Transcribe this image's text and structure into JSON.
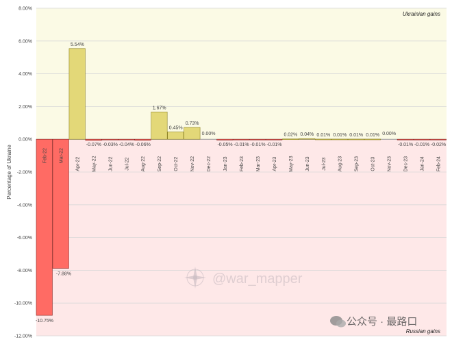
{
  "chart_data": {
    "type": "bar",
    "ylabel": "Percentage of Ukraine",
    "ylim": [
      -12,
      8
    ],
    "yticks": [
      "-12.00%",
      "-10.00%",
      "-8.00%",
      "-6.00%",
      "-4.00%",
      "-2.00%",
      "0.00%",
      "2.00%",
      "4.00%",
      "6.00%",
      "8.00%"
    ],
    "categories": [
      "Feb-22",
      "Mar-22",
      "Apr-22",
      "May-22",
      "Jun-22",
      "Jul-22",
      "Aug-22",
      "Sep-22",
      "Oct-22",
      "Nov-22",
      "Dec-22",
      "Jan-23",
      "Feb-23",
      "Mar-23",
      "Apr-23",
      "May-23",
      "Jun-23",
      "Jul-23",
      "Aug-23",
      "Sep-23",
      "Oct-23",
      "Nov-23",
      "Dec-23",
      "Jan-24",
      "Feb-24"
    ],
    "values": [
      -10.75,
      -7.88,
      5.54,
      -0.07,
      -0.03,
      -0.04,
      -0.06,
      1.67,
      0.45,
      0.73,
      0.0,
      -0.05,
      -0.01,
      -0.01,
      -0.01,
      0.02,
      0.04,
      0.01,
      0.01,
      0.01,
      0.01,
      0.0,
      -0.01,
      -0.01,
      -0.02
    ],
    "labels": [
      "-10.75%",
      "-7.88%",
      "5.54%",
      "-0.07%",
      "-0.03%",
      "-0.04%",
      "-0.06%",
      "1.67%",
      "0.45%",
      "0.73%",
      "0.00%",
      "-0.05%",
      "-0.01%",
      "-0.01%",
      "-0.01%",
      "0.02%",
      "0.04%",
      "0.01%",
      "0.01%",
      "0.01%",
      "0.01%",
      "0.00%",
      "-0.01%",
      "-0.01%",
      "-0.02%"
    ],
    "regions": {
      "positive": "Ukrainian gains",
      "negative": "Russian gains"
    },
    "grid": true
  },
  "colors": {
    "positive_bg": "#fbfae5",
    "negative_bg": "#fee8e8",
    "positive_bar": "#e3d878",
    "positive_bar_edge": "#8a7f20",
    "negative_bar": "#ff6b64",
    "negative_bar_edge": "#8a2a26",
    "grid": "#d8d8d8"
  },
  "watermark": {
    "text": "@war_mapper",
    "icon": "compass-rose-icon"
  },
  "social_watermark": {
    "text": "公众号 · 最路口",
    "icon": "wechat-icon"
  }
}
